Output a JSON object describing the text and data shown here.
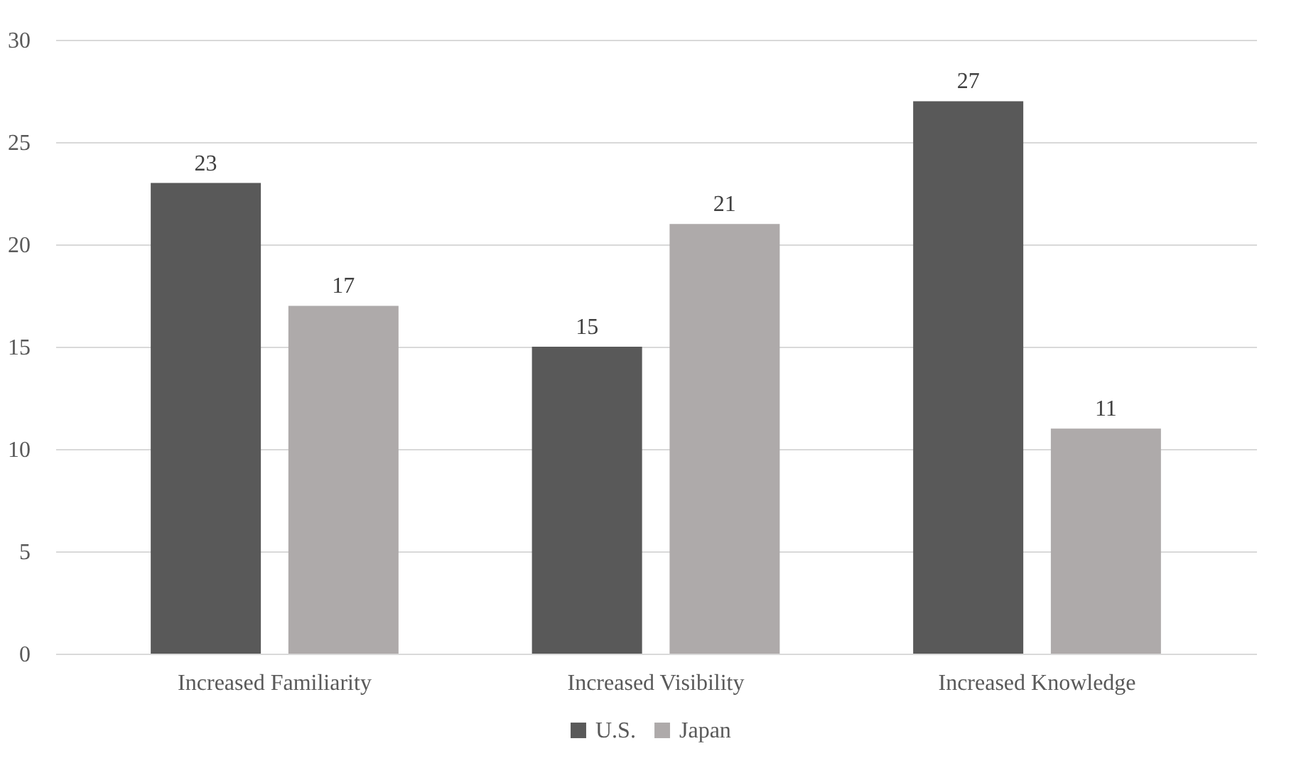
{
  "chart_data": {
    "type": "bar",
    "categories": [
      "Increased Familiarity",
      "Increased Visibility",
      "Increased Knowledge"
    ],
    "series": [
      {
        "name": "U.S.",
        "color": "#595959",
        "values": [
          23,
          15,
          27
        ]
      },
      {
        "name": "Japan",
        "color": "#aeaaaa",
        "values": [
          17,
          21,
          11
        ]
      }
    ],
    "ylim": [
      0,
      30
    ],
    "yticks": [
      0,
      5,
      10,
      15,
      20,
      25,
      30
    ],
    "grid": "y",
    "legend": "bottom",
    "data_labels": true
  }
}
